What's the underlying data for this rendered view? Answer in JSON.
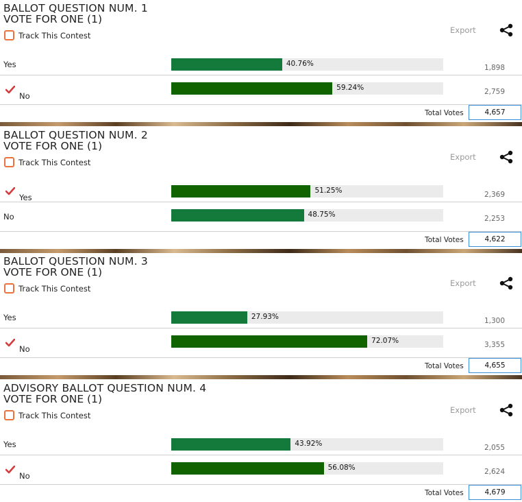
{
  "colors": {
    "bar_winner": "#116300",
    "bar_other": "#137a3c",
    "bar_track": "#ebebeb",
    "checkbox": "#e8743b",
    "check": "#d43b3b",
    "total_border": "#3a8ed8"
  },
  "ui": {
    "track_label": "Track This Contest",
    "export_label": "Export",
    "total_votes_label": "Total Votes"
  },
  "contests": [
    {
      "title": "BALLOT QUESTION NUM. 1",
      "subtitle": "VOTE FOR ONE (1)",
      "total": "4,657",
      "choices": [
        {
          "label": "Yes",
          "percent_text": "40.76%",
          "percent": 40.76,
          "votes": "1,898",
          "winner": false
        },
        {
          "label": "No",
          "percent_text": "59.24%",
          "percent": 59.24,
          "votes": "2,759",
          "winner": true
        }
      ]
    },
    {
      "title": "BALLOT QUESTION NUM. 2",
      "subtitle": "VOTE FOR ONE (1)",
      "total": "4,622",
      "choices": [
        {
          "label": "Yes",
          "percent_text": "51.25%",
          "percent": 51.25,
          "votes": "2,369",
          "winner": true
        },
        {
          "label": "No",
          "percent_text": "48.75%",
          "percent": 48.75,
          "votes": "2,253",
          "winner": false
        }
      ]
    },
    {
      "title": "BALLOT QUESTION NUM. 3",
      "subtitle": "VOTE FOR ONE (1)",
      "total": "4,655",
      "choices": [
        {
          "label": "Yes",
          "percent_text": "27.93%",
          "percent": 27.93,
          "votes": "1,300",
          "winner": false
        },
        {
          "label": "No",
          "percent_text": "72.07%",
          "percent": 72.07,
          "votes": "3,355",
          "winner": true
        }
      ]
    },
    {
      "title": "ADVISORY BALLOT QUESTION NUM. 4",
      "subtitle": "VOTE FOR ONE (1)",
      "total": "4,679",
      "choices": [
        {
          "label": "Yes",
          "percent_text": "43.92%",
          "percent": 43.92,
          "votes": "2,055",
          "winner": false
        },
        {
          "label": "No",
          "percent_text": "56.08%",
          "percent": 56.08,
          "votes": "2,624",
          "winner": true
        }
      ]
    }
  ]
}
